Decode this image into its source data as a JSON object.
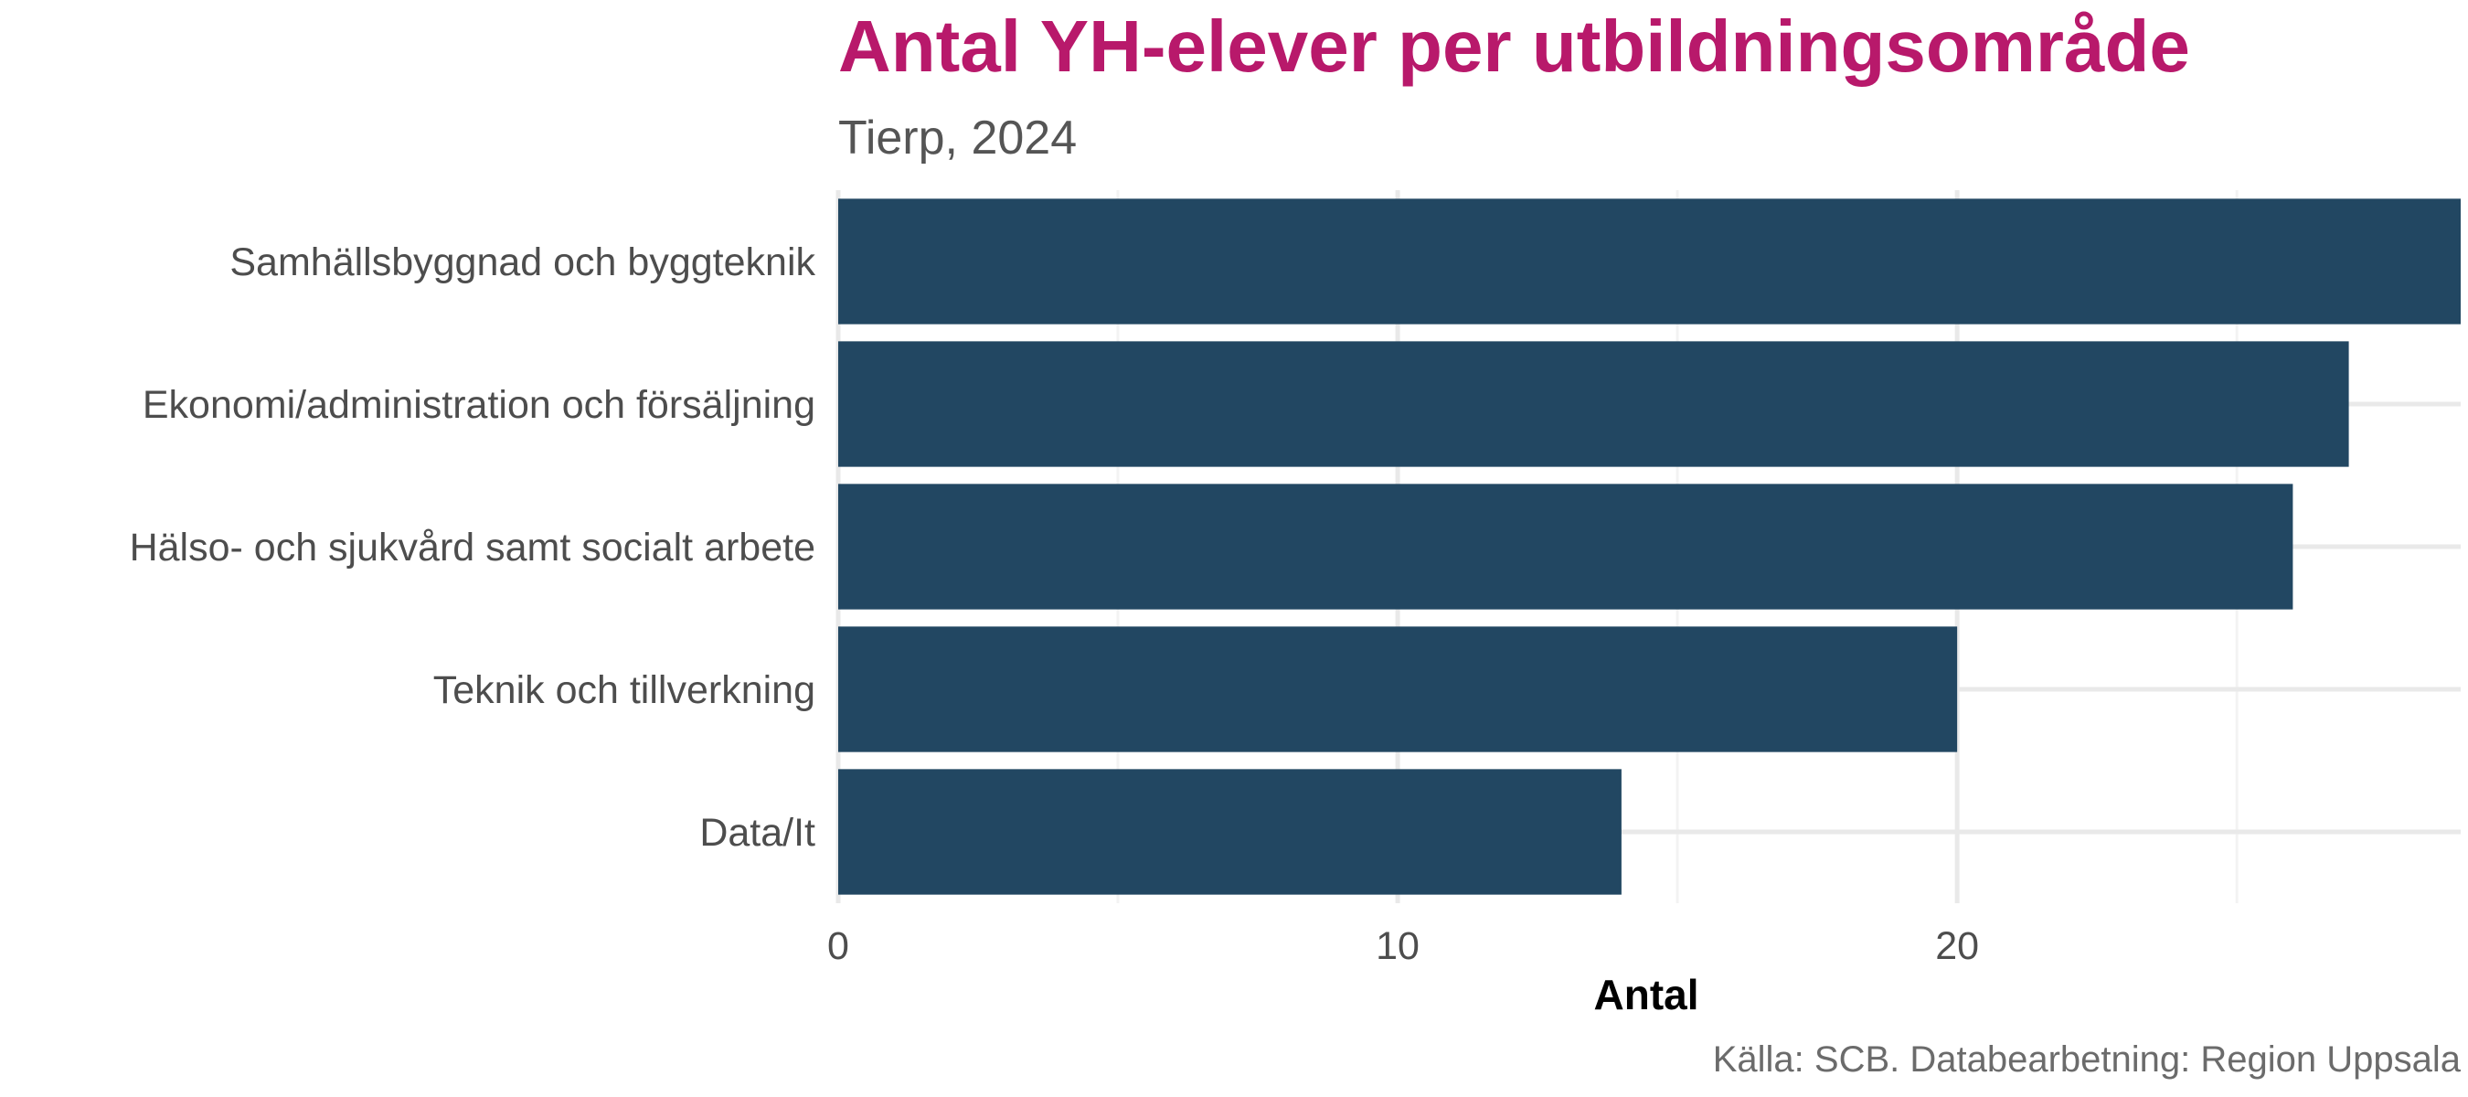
{
  "chart_data": {
    "type": "bar",
    "orientation": "horizontal",
    "title": "Antal YH-elever per utbildningsområde",
    "subtitle": "Tierp, 2024",
    "xlabel": "Antal",
    "ylabel": "",
    "caption": "Källa: SCB. Databearbetning: Region Uppsala",
    "categories": [
      "Samhällsbyggnad och byggteknik",
      "Ekonomi/administration och försäljning",
      "Hälso- och sjukvård samt socialt arbete",
      "Teknik och tillverkning",
      "Data/It"
    ],
    "values": [
      29,
      27,
      26,
      20,
      14
    ],
    "xlim": [
      0,
      29
    ],
    "xticks": [
      0,
      10,
      20
    ],
    "xtick_labels": [
      "0",
      "10",
      "20"
    ],
    "grid": true,
    "legend": "none",
    "colors": {
      "bar": "#224762",
      "title": "#b8196b",
      "subtitle": "#555555",
      "axis_text": "#4d4d4d",
      "axis_label": "#000000",
      "caption": "#6b6b6b",
      "grid_major": "#e9e9e9",
      "grid_minor": "#f3f3f3"
    }
  }
}
